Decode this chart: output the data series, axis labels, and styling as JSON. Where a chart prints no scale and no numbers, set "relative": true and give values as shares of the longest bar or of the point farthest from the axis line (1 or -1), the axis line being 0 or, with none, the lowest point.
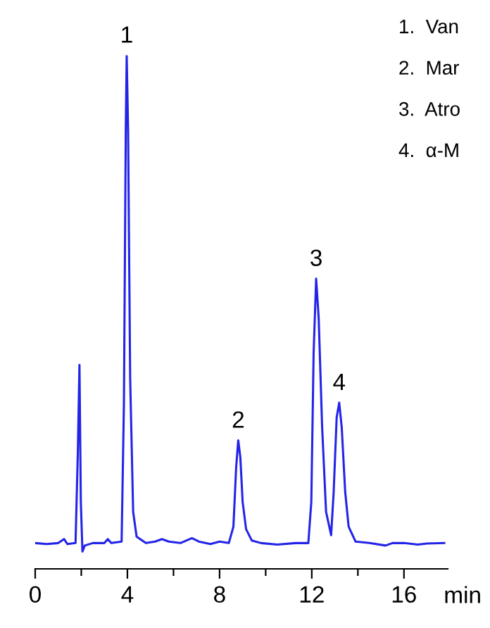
{
  "chart_data": {
    "type": "line",
    "relative": true,
    "xlabel": "min",
    "x": [
      0.0,
      0.5,
      1.0,
      1.25,
      1.4,
      1.75,
      1.85,
      1.92,
      1.98,
      2.05,
      2.15,
      2.5,
      3.0,
      3.15,
      3.3,
      3.75,
      3.85,
      3.93,
      3.97,
      4.03,
      4.12,
      4.25,
      4.4,
      4.8,
      5.2,
      5.5,
      5.8,
      6.3,
      6.8,
      7.1,
      7.6,
      8.0,
      8.4,
      8.6,
      8.72,
      8.81,
      8.9,
      9.0,
      9.15,
      9.4,
      9.8,
      10.5,
      11.3,
      11.85,
      11.98,
      12.08,
      12.19,
      12.3,
      12.45,
      12.62,
      12.84,
      12.95,
      13.08,
      13.19,
      13.3,
      13.45,
      13.6,
      13.9,
      14.5,
      15.2,
      15.5,
      16.0,
      16.6,
      17.0,
      17.75
    ],
    "series": [
      {
        "color": "#2424e8",
        "values": [
          0.017,
          0.015,
          0.017,
          0.025,
          0.015,
          0.017,
          0.2,
          0.376,
          0.1,
          0.0,
          0.012,
          0.017,
          0.017,
          0.025,
          0.017,
          0.02,
          0.3,
          0.85,
          1.0,
          0.85,
          0.35,
          0.08,
          0.03,
          0.017,
          0.02,
          0.025,
          0.02,
          0.017,
          0.027,
          0.02,
          0.015,
          0.02,
          0.017,
          0.05,
          0.17,
          0.224,
          0.19,
          0.1,
          0.045,
          0.022,
          0.017,
          0.014,
          0.017,
          0.017,
          0.1,
          0.4,
          0.55,
          0.47,
          0.25,
          0.08,
          0.033,
          0.12,
          0.27,
          0.3,
          0.25,
          0.12,
          0.05,
          0.02,
          0.017,
          0.012,
          0.017,
          0.017,
          0.014,
          0.016,
          0.017
        ]
      }
    ],
    "xlim": [
      0,
      17.9
    ],
    "xticks": [
      0,
      4,
      8,
      12,
      16
    ],
    "annotations": [
      {
        "text": "1",
        "x": 3.97,
        "y": 1.0
      },
      {
        "text": "2",
        "x": 8.81,
        "y": 0.224
      },
      {
        "text": "3",
        "x": 12.19,
        "y": 0.55
      },
      {
        "text": "4",
        "x": 13.19,
        "y": 0.3
      },
      "1.  Van",
      "2.  Mar",
      "3.  Atro",
      "4.  α-M"
    ],
    "grid": false,
    "legend": false,
    "marker": "none",
    "line_style": "solid"
  }
}
